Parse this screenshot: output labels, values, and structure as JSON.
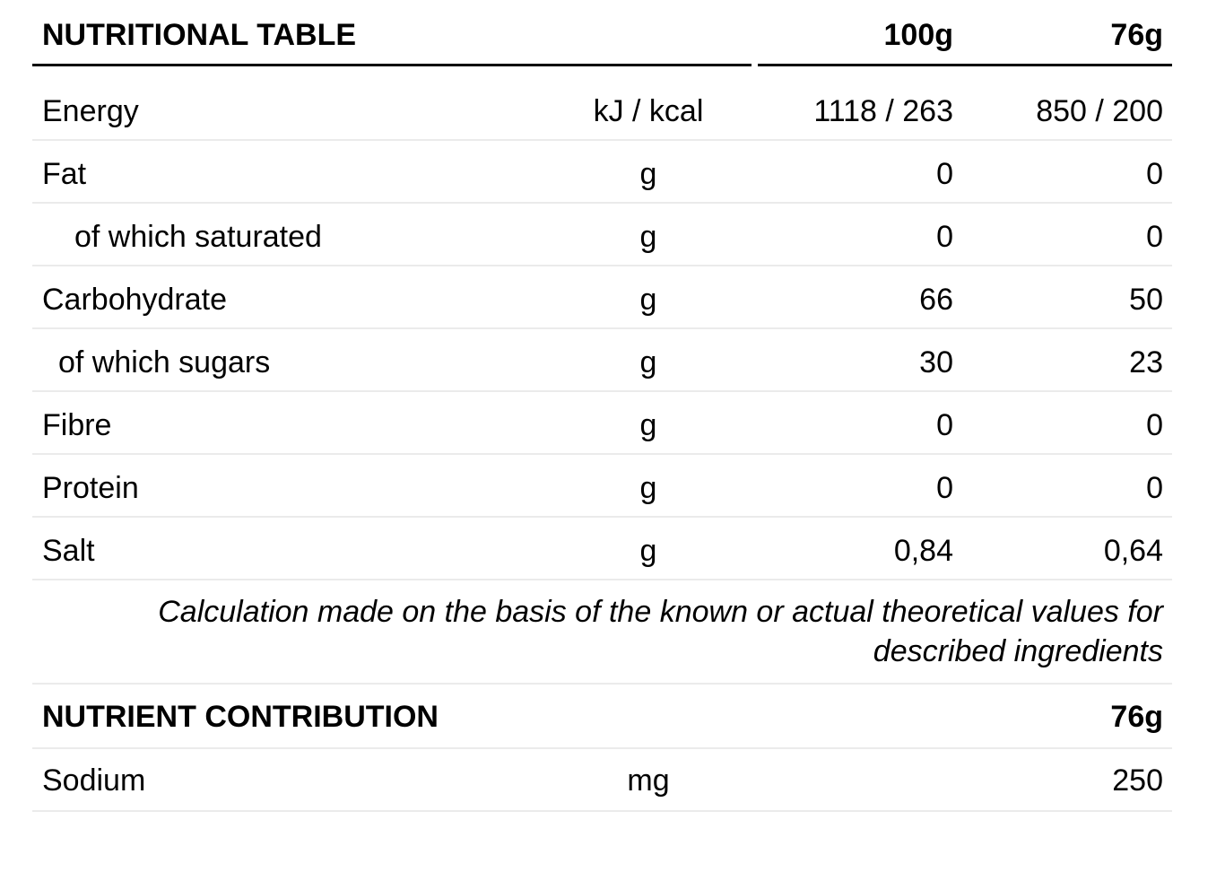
{
  "nutritional_table": {
    "title": "NUTRITIONAL TABLE",
    "columns": {
      "per100": "100g",
      "per_portion": "76g"
    },
    "rows": [
      {
        "label": "Energy",
        "unit": "kJ / kcal",
        "per100": "1118 / 263",
        "per_portion": "850 / 200"
      },
      {
        "label": "Fat",
        "unit": "g",
        "per100": "0",
        "per_portion": "0"
      },
      {
        "label": "of which saturated",
        "unit": "g",
        "per100": "0",
        "per_portion": "0"
      },
      {
        "label": "Carbohydrate",
        "unit": "g",
        "per100": "66",
        "per_portion": "50"
      },
      {
        "label": "of which sugars",
        "unit": "g",
        "per100": "30",
        "per_portion": "23"
      },
      {
        "label": "Fibre",
        "unit": "g",
        "per100": "0",
        "per_portion": "0"
      },
      {
        "label": "Protein",
        "unit": "g",
        "per100": "0",
        "per_portion": "0"
      },
      {
        "label": "Salt",
        "unit": "g",
        "per100": "0,84",
        "per_portion": "0,64"
      }
    ],
    "note_lines": [
      "Calculation made on the basis of the known or actual theoretical values for",
      "described ingredients"
    ]
  },
  "nutrient_contribution": {
    "title": "NUTRIENT CONTRIBUTION",
    "column": "76g",
    "rows": [
      {
        "label": "Sodium",
        "unit": "mg",
        "value": "250"
      }
    ]
  },
  "colors": {
    "text": "#000000",
    "heavy_rule": "#000000",
    "divider": "#ebebeb",
    "background": "#ffffff"
  }
}
